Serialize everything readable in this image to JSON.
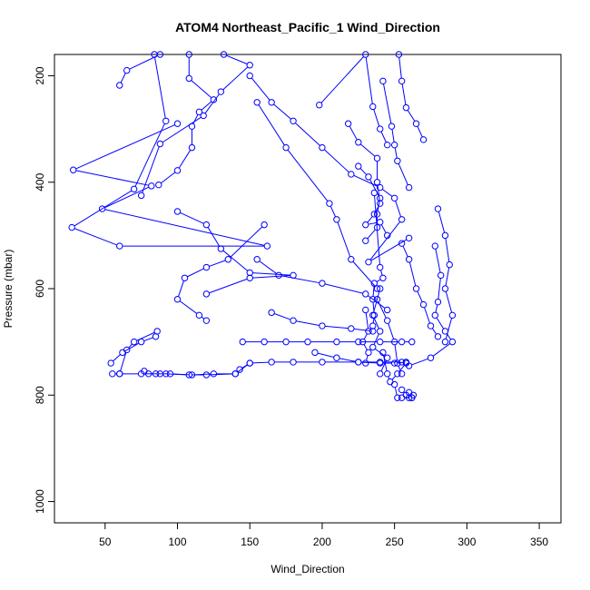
{
  "chart_data": {
    "type": "scatter",
    "title": "ATOM4 Northeast_Pacific_1 Wind_Direction",
    "xlabel": "Wind_Direction",
    "ylabel": "Pressure (mbar)",
    "xlim": [
      15,
      365
    ],
    "ylim": [
      1040,
      160
    ],
    "y_reversed": true,
    "x_ticks": [
      50,
      100,
      150,
      200,
      250,
      300,
      350
    ],
    "y_ticks": [
      200,
      400,
      600,
      800,
      1000
    ],
    "grid": false,
    "legend": "none",
    "colors": {
      "series": "#0000ff",
      "text": "#000000",
      "frame": "#000000"
    },
    "marker": "open-circle",
    "series": [
      {
        "points": [
          [
            88,
            160
          ],
          [
            65,
            190
          ],
          [
            60,
            218
          ]
        ]
      },
      {
        "points": [
          [
            84,
            160
          ],
          [
            92,
            285
          ],
          [
            70,
            413
          ],
          [
            27,
            485
          ],
          [
            60,
            520
          ],
          [
            162,
            520
          ],
          [
            48,
            450
          ],
          [
            82,
            407
          ],
          [
            28,
            377
          ],
          [
            100,
            290
          ]
        ]
      },
      {
        "points": [
          [
            108,
            160
          ],
          [
            108,
            205
          ],
          [
            125,
            245
          ],
          [
            115,
            268
          ],
          [
            110,
            295
          ],
          [
            110,
            335
          ],
          [
            100,
            378
          ],
          [
            87,
            405
          ]
        ]
      },
      {
        "points": [
          [
            132,
            160
          ],
          [
            150,
            180
          ],
          [
            130,
            230
          ],
          [
            118,
            275
          ],
          [
            88,
            328
          ],
          [
            75,
            425
          ]
        ]
      },
      {
        "points": [
          [
            150,
            200
          ],
          [
            165,
            250
          ],
          [
            180,
            285
          ],
          [
            200,
            335
          ],
          [
            220,
            385
          ],
          [
            240,
            410
          ],
          [
            250,
            430
          ],
          [
            255,
            470
          ],
          [
            232,
            550
          ],
          [
            260,
            505
          ]
        ]
      },
      {
        "points": [
          [
            155,
            250
          ],
          [
            175,
            335
          ],
          [
            205,
            440
          ],
          [
            210,
            470
          ],
          [
            220,
            545
          ],
          [
            238,
            600
          ]
        ]
      },
      {
        "points": [
          [
            198,
            255
          ],
          [
            230,
            160
          ],
          [
            235,
            258
          ],
          [
            240,
            300
          ],
          [
            245,
            330
          ]
        ]
      },
      {
        "points": [
          [
            242,
            210
          ],
          [
            248,
            295
          ],
          [
            250,
            330
          ],
          [
            252,
            360
          ],
          [
            260,
            410
          ]
        ]
      },
      {
        "points": [
          [
            253,
            160
          ],
          [
            255,
            210
          ],
          [
            258,
            260
          ],
          [
            265,
            290
          ],
          [
            270,
            320
          ]
        ]
      },
      {
        "points": [
          [
            218,
            290
          ],
          [
            225,
            325
          ],
          [
            238,
            355
          ],
          [
            238,
            400
          ],
          [
            240,
            440
          ],
          [
            236,
            460
          ],
          [
            230,
            480
          ],
          [
            240,
            475
          ],
          [
            245,
            500
          ]
        ]
      },
      {
        "points": [
          [
            225,
            370
          ],
          [
            232,
            390
          ],
          [
            240,
            430
          ],
          [
            238,
            460
          ],
          [
            238,
            485
          ],
          [
            230,
            510
          ]
        ]
      },
      {
        "points": [
          [
            100,
            455
          ],
          [
            120,
            480
          ],
          [
            130,
            525
          ],
          [
            150,
            570
          ],
          [
            180,
            575
          ],
          [
            150,
            580
          ],
          [
            120,
            610
          ]
        ]
      },
      {
        "points": [
          [
            160,
            480
          ],
          [
            135,
            545
          ],
          [
            120,
            560
          ],
          [
            105,
            580
          ],
          [
            100,
            620
          ],
          [
            115,
            650
          ],
          [
            120,
            660
          ]
        ]
      },
      {
        "points": [
          [
            155,
            545
          ],
          [
            170,
            575
          ],
          [
            200,
            590
          ],
          [
            230,
            610
          ],
          [
            245,
            640
          ]
        ]
      },
      {
        "points": [
          [
            165,
            645
          ],
          [
            180,
            660
          ],
          [
            200,
            670
          ],
          [
            220,
            675
          ],
          [
            235,
            680
          ]
        ]
      },
      {
        "points": [
          [
            255,
            515
          ],
          [
            260,
            545
          ],
          [
            265,
            600
          ],
          [
            270,
            630
          ],
          [
            275,
            670
          ],
          [
            280,
            690
          ]
        ]
      },
      {
        "points": [
          [
            280,
            450
          ],
          [
            285,
            500
          ],
          [
            288,
            555
          ],
          [
            285,
            600
          ],
          [
            290,
            650
          ],
          [
            285,
            700
          ]
        ]
      },
      {
        "points": [
          [
            278,
            520
          ],
          [
            282,
            575
          ],
          [
            280,
            625
          ],
          [
            278,
            650
          ],
          [
            285,
            680
          ],
          [
            290,
            700
          ],
          [
            275,
            730
          ],
          [
            260,
            745
          ]
        ]
      },
      {
        "points": [
          [
            238,
            620
          ],
          [
            245,
            660
          ],
          [
            250,
            700
          ],
          [
            252,
            740
          ],
          [
            255,
            760
          ]
        ]
      },
      {
        "points": [
          [
            240,
            600
          ],
          [
            235,
            650
          ],
          [
            240,
            680
          ],
          [
            235,
            710
          ],
          [
            245,
            730
          ],
          [
            240,
            760
          ]
        ]
      },
      {
        "points": [
          [
            230,
            640
          ],
          [
            232,
            680
          ],
          [
            228,
            700
          ],
          [
            232,
            720
          ],
          [
            230,
            740
          ]
        ]
      },
      {
        "points": [
          [
            255,
            790
          ],
          [
            258,
            800
          ],
          [
            260,
            805
          ],
          [
            262,
            805
          ],
          [
            263,
            800
          ],
          [
            260,
            795
          ]
        ]
      },
      {
        "points": [
          [
            250,
            780
          ],
          [
            252,
            805
          ],
          [
            255,
            805
          ],
          [
            262,
            805
          ]
        ]
      },
      {
        "points": [
          [
            86,
            680
          ],
          [
            70,
            700
          ],
          [
            65,
            715
          ],
          [
            60,
            760
          ],
          [
            55,
            760
          ]
        ]
      },
      {
        "points": [
          [
            54,
            740
          ],
          [
            62,
            720
          ],
          [
            75,
            700
          ],
          [
            85,
            690
          ]
        ]
      },
      {
        "points": [
          [
            60,
            760
          ],
          [
            75,
            760
          ],
          [
            85,
            760
          ],
          [
            95,
            760
          ],
          [
            110,
            762
          ],
          [
            125,
            760
          ],
          [
            140,
            760
          ],
          [
            150,
            740
          ],
          [
            165,
            738
          ],
          [
            180,
            738
          ],
          [
            200,
            738
          ],
          [
            225,
            738
          ],
          [
            240,
            738
          ],
          [
            255,
            738
          ]
        ]
      },
      {
        "points": [
          [
            145,
            700
          ],
          [
            160,
            700
          ],
          [
            175,
            700
          ],
          [
            190,
            700
          ],
          [
            210,
            700
          ],
          [
            225,
            700
          ],
          [
            240,
            700
          ],
          [
            255,
            700
          ],
          [
            262,
            700
          ]
        ]
      },
      {
        "points": [
          [
            77,
            755
          ],
          [
            80,
            760
          ],
          [
            88,
            760
          ],
          [
            92,
            760
          ],
          [
            108,
            762
          ],
          [
            120,
            762
          ],
          [
            140,
            760
          ],
          [
            143,
            752
          ],
          [
            150,
            740
          ]
        ]
      },
      {
        "points": [
          [
            195,
            720
          ],
          [
            210,
            730
          ],
          [
            225,
            738
          ],
          [
            240,
            740
          ],
          [
            250,
            740
          ],
          [
            258,
            738
          ]
        ]
      },
      {
        "points": [
          [
            236,
            420
          ],
          [
            240,
            560
          ],
          [
            242,
            580
          ],
          [
            236,
            590
          ],
          [
            235,
            620
          ],
          [
            236,
            650
          ],
          [
            235,
            670
          ]
        ]
      },
      {
        "points": [
          [
            242,
            720
          ],
          [
            245,
            760
          ],
          [
            247,
            775
          ],
          [
            252,
            760
          ],
          [
            258,
            740
          ]
        ]
      }
    ]
  }
}
